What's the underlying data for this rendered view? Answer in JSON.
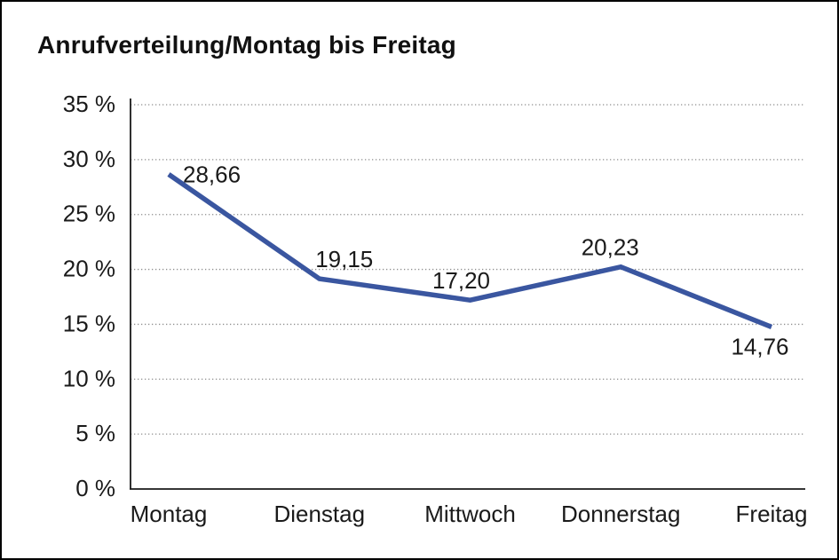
{
  "window": {
    "background": "#ffffff",
    "frame_border_color": "#000000"
  },
  "chart_data": {
    "type": "line",
    "title": "Anrufverteilung/Montag bis Freitag",
    "categories": [
      "Montag",
      "Dienstag",
      "Mittwoch",
      "Donnerstag",
      "Freitag"
    ],
    "values": [
      28.66,
      19.15,
      17.2,
      20.23,
      14.76
    ],
    "point_labels": [
      "28,66",
      "19,15",
      "17,20",
      "20,23",
      "14,76"
    ],
    "label_positions": [
      "right",
      "above",
      "above",
      "above",
      "below"
    ],
    "label_dx": [
      0,
      28,
      -10,
      -12,
      0
    ],
    "y_ticks": [
      "0 %",
      "5 %",
      "10 %",
      "15 %",
      "20 %",
      "25 %",
      "30 %",
      "35 %"
    ],
    "ylim": [
      0,
      35
    ],
    "y_step": 5,
    "xlabel": "",
    "ylabel": "",
    "grid": "horizontal-dotted",
    "legend": "none",
    "colors": {
      "line": "#3a56a0",
      "grid": "#8f8f8f",
      "axis": "#1a1a1a",
      "text": "#1a1a1a",
      "title": "#111111"
    }
  }
}
